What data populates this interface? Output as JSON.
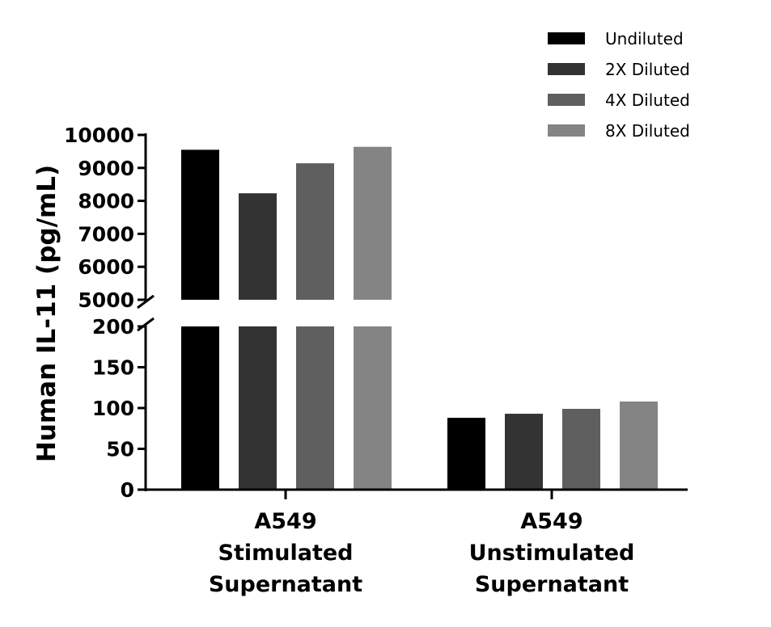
{
  "chart_data": {
    "type": "bar",
    "ylabel": "Human IL-11 (pg/mL)",
    "xlabel": "",
    "categories": [
      [
        "A549",
        "Stimulated",
        "Supernatant"
      ],
      [
        "A549",
        "Unstimulated",
        "Supernatant"
      ]
    ],
    "series": [
      {
        "name": "Undiluted",
        "color": "#000000",
        "values": [
          9550,
          88
        ]
      },
      {
        "name": "2X Diluted",
        "color": "#333333",
        "values": [
          8230,
          93
        ]
      },
      {
        "name": "4X Diluted",
        "color": "#5f5f5f",
        "values": [
          9140,
          99
        ]
      },
      {
        "name": "8X Diluted",
        "color": "#848484",
        "values": [
          9640,
          108
        ]
      }
    ],
    "axis": {
      "broken": true,
      "lower_segment": {
        "range": [
          0,
          200
        ],
        "ticks": [
          "0",
          "50",
          "100",
          "150",
          "200"
        ]
      },
      "upper_segment": {
        "range": [
          5000,
          10000
        ],
        "ticks": [
          "5000",
          "6000",
          "7000",
          "8000",
          "9000",
          "10000"
        ]
      }
    },
    "legend": {
      "placement": "top-right"
    },
    "grid": false
  }
}
